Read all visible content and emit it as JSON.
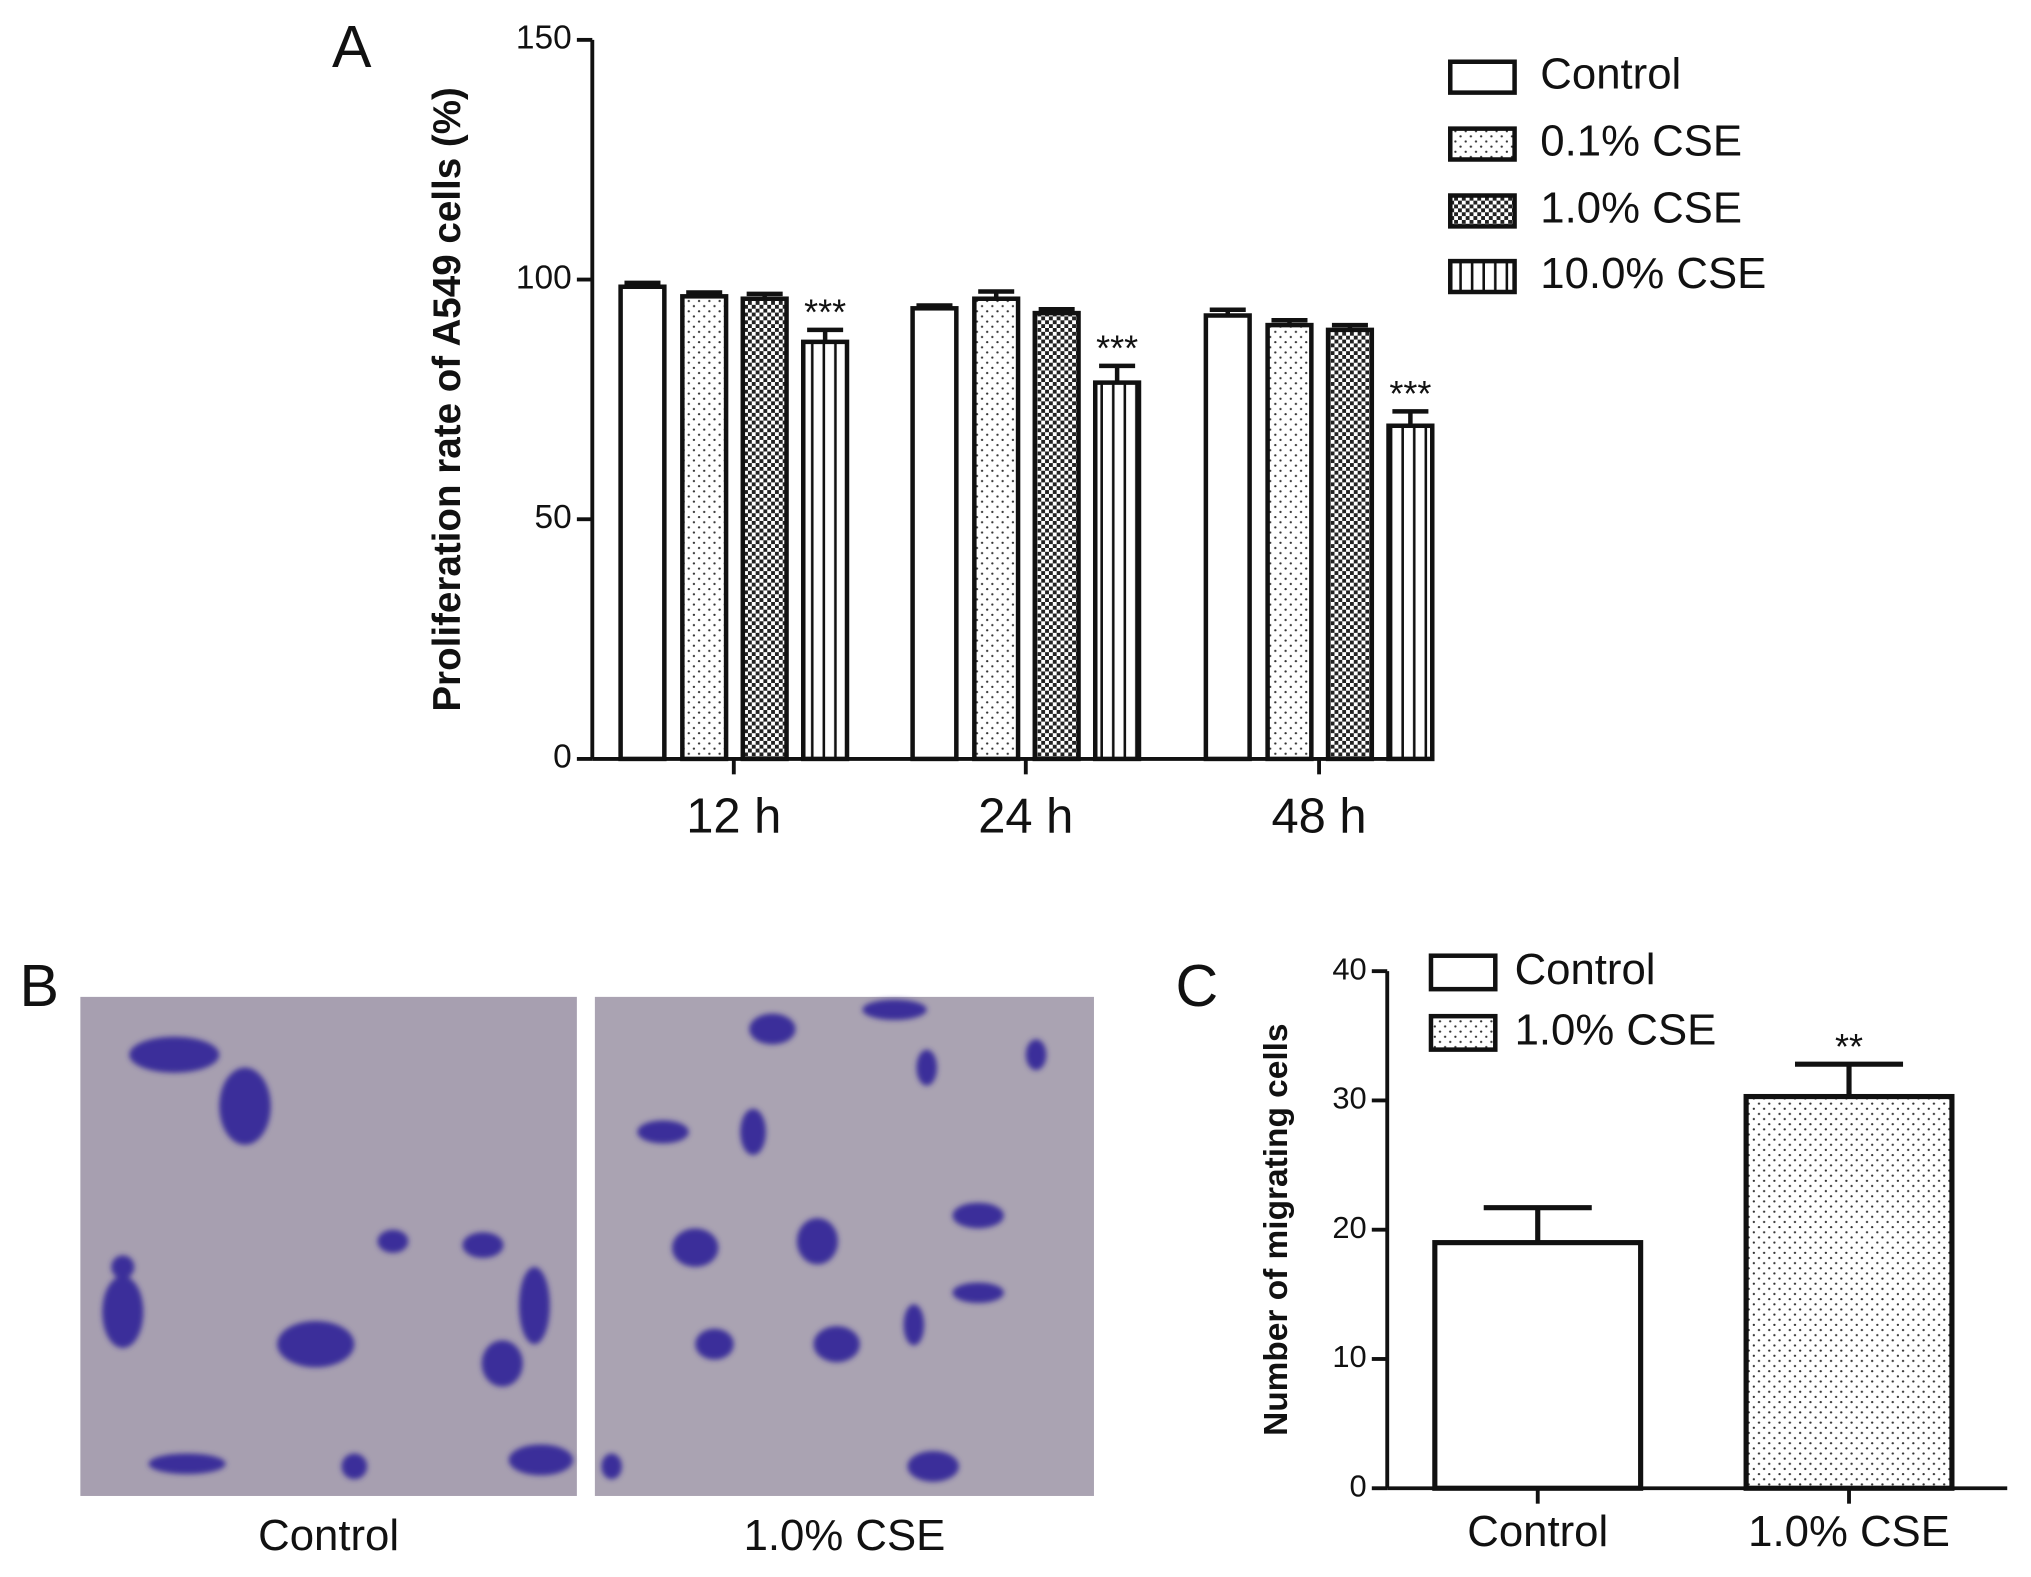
{
  "panel_labels": [
    "A",
    "B",
    "C"
  ],
  "images": {
    "labels": [
      "Control",
      "1.0% CSE"
    ]
  },
  "chart_data": [
    {
      "type": "bar",
      "y_label": "Proliferation rate of A549 cells (%)",
      "categories": [
        "12 h",
        "24 h",
        "48 h"
      ],
      "ylim": [
        0,
        150
      ],
      "yticks": [
        0,
        50,
        100,
        150
      ],
      "series": [
        {
          "name": "Control",
          "pattern": "none",
          "values": [
            98.5,
            94,
            92.5
          ],
          "errors": [
            0.8,
            0.6,
            1.2
          ]
        },
        {
          "name": "0.1% CSE",
          "pattern": "dots",
          "values": [
            96.5,
            96,
            90.5
          ],
          "errors": [
            0.8,
            1.5,
            1
          ]
        },
        {
          "name": "1.0% CSE",
          "pattern": "checker",
          "values": [
            96,
            93,
            89.5
          ],
          "errors": [
            1,
            0.8,
            1
          ]
        },
        {
          "name": "10.0% CSE",
          "pattern": "vlines",
          "values": [
            87,
            78.5,
            69.5
          ],
          "errors": [
            2.5,
            3.5,
            3
          ],
          "significance": [
            "***",
            "***",
            "***"
          ]
        }
      ]
    },
    {
      "type": "bar",
      "y_label": "Number of migrating cells",
      "categories": [
        "Control",
        "1.0% CSE"
      ],
      "ylim": [
        0,
        40
      ],
      "yticks": [
        0,
        10,
        20,
        30,
        40
      ],
      "series": [
        {
          "name": "Control",
          "pattern": "none",
          "values": [
            19,
            null
          ],
          "errors": [
            2.7,
            null
          ]
        },
        {
          "name": "1.0% CSE",
          "pattern": "dots",
          "values": [
            null,
            30.3
          ],
          "errors": [
            null,
            2.5
          ],
          "significance": [
            null,
            "**"
          ]
        }
      ]
    }
  ]
}
